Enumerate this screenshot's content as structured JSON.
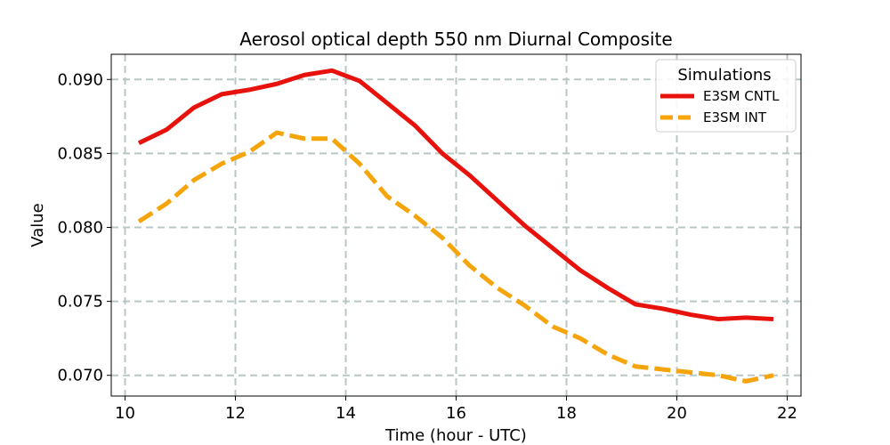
{
  "chart_data": {
    "type": "line",
    "title": "Aerosol optical depth 550 nm Diurnal Composite",
    "xlabel": "Time (hour - UTC)",
    "ylabel": "Value",
    "xlim": [
      9.75,
      22.25
    ],
    "ylim": [
      0.0686,
      0.0917
    ],
    "xticks": [
      10,
      12,
      14,
      16,
      18,
      20,
      22
    ],
    "xtick_labels": [
      "10",
      "12",
      "14",
      "16",
      "18",
      "20",
      "22"
    ],
    "yticks": [
      0.07,
      0.075,
      0.08,
      0.085,
      0.09
    ],
    "ytick_labels": [
      "0.070",
      "0.075",
      "0.080",
      "0.085",
      "0.090"
    ],
    "grid": true,
    "legend": {
      "title": "Simulations",
      "placement": "top-right"
    },
    "x": [
      10.25,
      10.75,
      11.25,
      11.75,
      12.25,
      12.75,
      13.25,
      13.75,
      14.25,
      14.75,
      15.25,
      15.75,
      16.25,
      16.75,
      17.25,
      17.75,
      18.25,
      18.75,
      19.25,
      19.75,
      20.25,
      20.75,
      21.25,
      21.75
    ],
    "series": [
      {
        "name": "E3SM CNTL",
        "color": "#e8120c",
        "style": "solid",
        "values": [
          0.0857,
          0.0866,
          0.0881,
          0.089,
          0.0893,
          0.0897,
          0.0903,
          0.0906,
          0.0899,
          0.0884,
          0.0869,
          0.085,
          0.0835,
          0.0818,
          0.0801,
          0.0786,
          0.0771,
          0.0759,
          0.0748,
          0.0745,
          0.0741,
          0.0738,
          0.0739,
          0.0738
        ]
      },
      {
        "name": "E3SM INT",
        "color": "#f5a40a",
        "style": "dashed",
        "values": [
          0.0804,
          0.0816,
          0.0832,
          0.0843,
          0.0851,
          0.0864,
          0.086,
          0.086,
          0.0843,
          0.0821,
          0.0808,
          0.0793,
          0.0774,
          0.0759,
          0.0747,
          0.0733,
          0.0725,
          0.0714,
          0.0706,
          0.0704,
          0.0702,
          0.07,
          0.0696,
          0.07
        ]
      }
    ]
  }
}
